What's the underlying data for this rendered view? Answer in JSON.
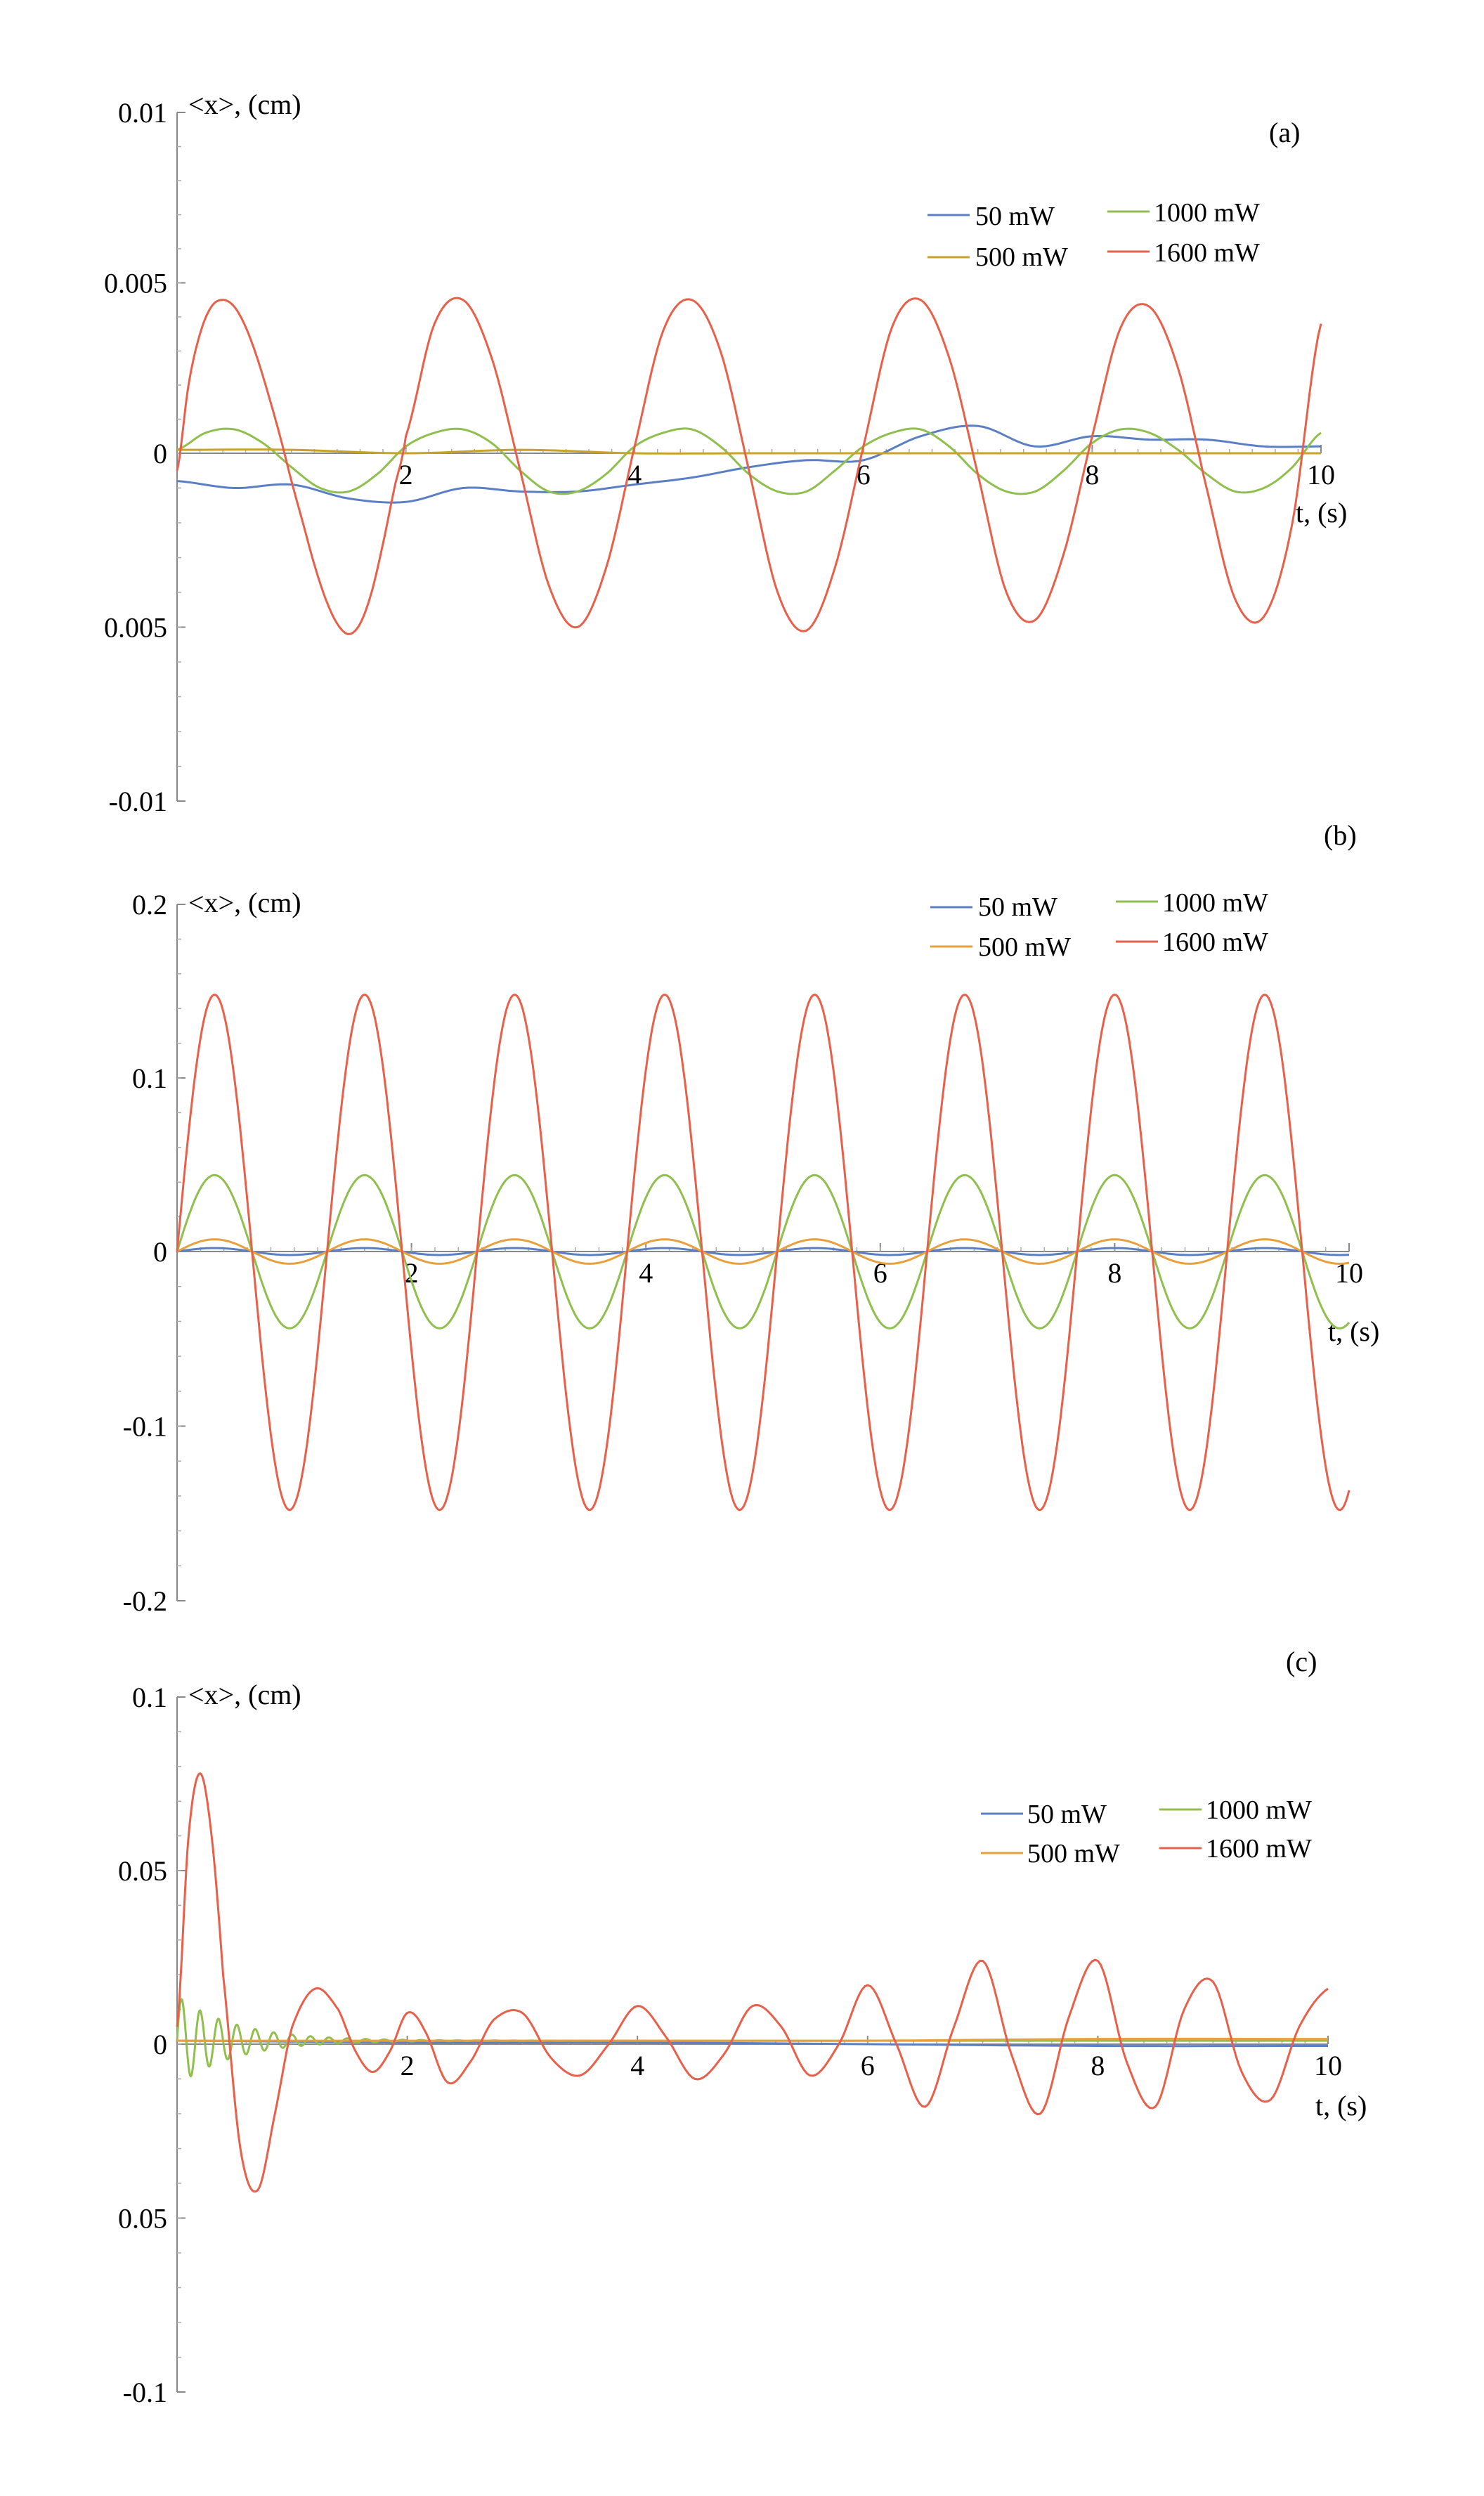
{
  "chart_data": [
    {
      "type": "line",
      "panel_label": "(a)",
      "xlabel": "t, (s)",
      "ylabel": "<x>, (cm)",
      "xlim": [
        0,
        10
      ],
      "ylim": [
        -0.01,
        0.01
      ],
      "x_ticks": [
        {
          "v": 2,
          "t": "2"
        },
        {
          "v": 4,
          "t": "4"
        },
        {
          "v": 6,
          "t": "6"
        },
        {
          "v": 8,
          "t": "8"
        },
        {
          "v": 10,
          "t": "10"
        }
      ],
      "y_ticks": [
        {
          "v": 0.01,
          "t": "0.01"
        },
        {
          "v": 0.005,
          "t": "0.005"
        },
        {
          "v": 0,
          "t": "0"
        },
        {
          "v": -0.005,
          "t": "0.005"
        },
        {
          "v": -0.01,
          "t": "-0.01"
        }
      ],
      "legend": [
        "50 mW",
        "1000 mW",
        "500 mW",
        "1600 mW"
      ],
      "series": [
        {
          "name": "50 mW",
          "color": "#5b7fc4",
          "x": [
            0,
            0.5,
            1,
            1.5,
            2,
            2.5,
            3,
            3.5,
            4,
            4.5,
            5,
            5.5,
            6,
            6.5,
            7,
            7.5,
            8,
            8.5,
            9,
            9.5,
            10
          ],
          "y": [
            -0.0008,
            -0.001,
            -0.0009,
            -0.0013,
            -0.0014,
            -0.001,
            -0.0011,
            -0.0011,
            -0.0009,
            -0.0007,
            -0.0004,
            -0.0002,
            -0.0002,
            0.0005,
            0.0008,
            0.0002,
            0.0005,
            0.0004,
            0.0004,
            0.0002,
            0.0002
          ]
        },
        {
          "name": "1000 mW",
          "color": "#8fbf4d",
          "x": [
            0,
            0.25,
            0.5,
            0.75,
            1,
            1.25,
            1.5,
            1.75,
            2,
            2.25,
            2.5,
            2.75,
            3,
            3.25,
            3.5,
            3.75,
            4,
            4.25,
            4.5,
            4.75,
            5,
            5.25,
            5.5,
            5.75,
            6,
            6.25,
            6.5,
            6.75,
            7,
            7.25,
            7.5,
            7.75,
            8,
            8.25,
            8.5,
            8.75,
            9,
            9.25,
            9.5,
            9.75,
            10
          ],
          "y": [
            0.0001,
            0.0006,
            0.0007,
            0.0003,
            -0.0004,
            -0.001,
            -0.0011,
            -0.0006,
            0.0002,
            0.0006,
            0.0007,
            0.0003,
            -0.0005,
            -0.0011,
            -0.0011,
            -0.0006,
            0.0002,
            0.0006,
            0.0007,
            0.0002,
            -0.0006,
            -0.0011,
            -0.0011,
            -0.0005,
            0.0002,
            0.0006,
            0.0007,
            0.0002,
            -0.0006,
            -0.0011,
            -0.0011,
            -0.0005,
            0.0003,
            0.0007,
            0.0006,
            0.0001,
            -0.0006,
            -0.0011,
            -0.001,
            -0.0004,
            0.0006
          ]
        },
        {
          "name": "500 mW",
          "color": "#c9a227",
          "x": [
            0,
            1,
            2,
            3,
            4,
            5,
            6,
            7,
            8,
            9,
            10
          ],
          "y": [
            0.0001,
            0.0001,
            0.0,
            0.0001,
            0.0,
            0.0,
            0.0,
            0.0,
            0.0,
            0.0,
            0.0
          ]
        },
        {
          "name": "1600 mW",
          "color": "#e8604a",
          "x": [
            0,
            0.1,
            0.2,
            0.3,
            0.4,
            0.5,
            0.6,
            0.7,
            0.8,
            0.9,
            1,
            1.1,
            1.2,
            1.3,
            1.4,
            1.5,
            1.6,
            1.7,
            1.8,
            1.9,
            2,
            2.25,
            2.5,
            2.75,
            3,
            3.25,
            3.5,
            3.75,
            4,
            4.25,
            4.5,
            4.75,
            5,
            5.25,
            5.5,
            5.75,
            6,
            6.25,
            6.5,
            6.75,
            7,
            7.25,
            7.5,
            7.75,
            8,
            8.25,
            8.5,
            8.75,
            9,
            9.25,
            9.5,
            9.75,
            10
          ],
          "y": [
            -0.0005,
            0.002,
            0.0035,
            0.0043,
            0.0045,
            0.0043,
            0.0037,
            0.0028,
            0.0017,
            0.0005,
            -0.0008,
            -0.002,
            -0.0032,
            -0.0042,
            -0.0049,
            -0.0052,
            -0.0049,
            -0.004,
            -0.0026,
            -0.001,
            0.0005,
            0.0038,
            0.0045,
            0.0028,
            -0.0005,
            -0.0038,
            -0.005,
            -0.0033,
            0.0002,
            0.0036,
            0.0045,
            0.003,
            -0.0005,
            -0.004,
            -0.0051,
            -0.0033,
            0.0002,
            0.0037,
            0.0045,
            0.0028,
            -0.0006,
            -0.004,
            -0.0048,
            -0.0029,
            0.0005,
            0.0037,
            0.0043,
            0.0025,
            -0.001,
            -0.0042,
            -0.0047,
            -0.002,
            0.0038
          ]
        }
      ]
    },
    {
      "type": "line",
      "panel_label": "(b)",
      "xlabel": "t, (s)",
      "ylabel": "<x>, (cm)",
      "xlim": [
        0,
        10
      ],
      "ylim": [
        -0.2,
        0.2
      ],
      "x_ticks": [
        {
          "v": 2,
          "t": "2"
        },
        {
          "v": 4,
          "t": "4"
        },
        {
          "v": 6,
          "t": "6"
        },
        {
          "v": 8,
          "t": "8"
        },
        {
          "v": 10,
          "t": "10"
        }
      ],
      "y_ticks": [
        {
          "v": 0.2,
          "t": "0.2"
        },
        {
          "v": 0.1,
          "t": "0.1"
        },
        {
          "v": 0,
          "t": "0"
        },
        {
          "v": -0.1,
          "t": "-0.1"
        },
        {
          "v": -0.2,
          "t": "-0.2"
        }
      ],
      "legend": [
        "50 mW",
        "1000 mW",
        "500 mW",
        "1600 mW"
      ],
      "series": [
        {
          "name": "50 mW",
          "color": "#5b7fc4",
          "amplitude": 0.002,
          "period": 1.28
        },
        {
          "name": "1000 mW",
          "color": "#8fbf4d",
          "amplitude": 0.044,
          "period": 1.28
        },
        {
          "name": "500 mW",
          "color": "#e8a03c",
          "amplitude": 0.007,
          "period": 1.28
        },
        {
          "name": "1600 mW",
          "color": "#e8604a",
          "amplitude": 0.148,
          "period": 1.28
        }
      ]
    },
    {
      "type": "line",
      "panel_label": "(c)",
      "xlabel": "t, (s)",
      "ylabel": "<x>, (cm)",
      "xlim": [
        0,
        10
      ],
      "ylim": [
        -0.1,
        0.1
      ],
      "x_ticks": [
        {
          "v": 2,
          "t": "2"
        },
        {
          "v": 4,
          "t": "4"
        },
        {
          "v": 6,
          "t": "6"
        },
        {
          "v": 8,
          "t": "8"
        },
        {
          "v": 10,
          "t": "10"
        }
      ],
      "y_ticks": [
        {
          "v": 0.1,
          "t": "0.1"
        },
        {
          "v": 0.05,
          "t": "0.05"
        },
        {
          "v": 0,
          "t": "0"
        },
        {
          "v": -0.05,
          "t": "0.05"
        },
        {
          "v": -0.1,
          "t": "-0.1"
        }
      ],
      "legend": [
        "50 mW",
        "1000 mW",
        "500 mW",
        "1600 mW"
      ],
      "series": [
        {
          "name": "50 mW",
          "color": "#5b7fc4",
          "x": [
            0,
            2,
            4,
            6,
            8,
            10
          ],
          "y": [
            0.001,
            0.0005,
            0.0005,
            0.0,
            -0.0005,
            -0.0005
          ]
        },
        {
          "name": "1000 mW",
          "color": "#8fbf4d",
          "amplitude0": 0.013,
          "period": 0.16,
          "decay": 2.0
        },
        {
          "name": "500 mW",
          "color": "#e8a03c",
          "x": [
            0,
            2,
            4,
            6,
            8,
            10
          ],
          "y": [
            0.001,
            0.001,
            0.001,
            0.001,
            0.0015,
            0.0015
          ]
        },
        {
          "name": "1600 mW",
          "color": "#e8604a",
          "x": [
            0,
            0.1,
            0.2,
            0.3,
            0.4,
            0.55,
            0.7,
            0.85,
            1.0,
            1.2,
            1.4,
            1.55,
            1.7,
            1.85,
            2.0,
            2.15,
            2.35,
            2.55,
            2.75,
            3.0,
            3.25,
            3.5,
            3.75,
            4.0,
            4.25,
            4.5,
            4.75,
            5.0,
            5.25,
            5.5,
            5.75,
            6.0,
            6.25,
            6.5,
            6.75,
            7.0,
            7.25,
            7.5,
            7.75,
            8.0,
            8.25,
            8.5,
            8.75,
            9.0,
            9.25,
            9.5,
            9.75,
            10
          ],
          "y": [
            0.005,
            0.06,
            0.078,
            0.06,
            0.02,
            -0.03,
            -0.042,
            -0.02,
            0.005,
            0.016,
            0.01,
            -0.002,
            -0.008,
            -0.002,
            0.009,
            0.004,
            -0.011,
            -0.005,
            0.007,
            0.009,
            -0.004,
            -0.009,
            0.0,
            0.011,
            0.002,
            -0.01,
            -0.003,
            0.011,
            0.005,
            -0.009,
            0.0,
            0.017,
            0.0,
            -0.018,
            0.005,
            0.024,
            -0.003,
            -0.02,
            0.008,
            0.024,
            -0.005,
            -0.018,
            0.01,
            0.018,
            -0.008,
            -0.016,
            0.005,
            0.016
          ]
        }
      ]
    }
  ]
}
